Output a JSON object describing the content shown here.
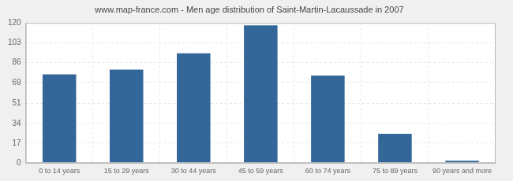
{
  "chart_data": {
    "type": "bar",
    "title": "www.map-france.com - Men age distribution of Saint-Martin-Lacaussade in 2007",
    "categories": [
      "0 to 14 years",
      "15 to 29 years",
      "30 to 44 years",
      "45 to 59 years",
      "60 to 74 years",
      "75 to 89 years",
      "90 years and more"
    ],
    "values": [
      76,
      80,
      94,
      118,
      75,
      25,
      2
    ],
    "color": "#336699",
    "ylim": [
      0,
      120
    ],
    "yticks": [
      0,
      17,
      34,
      51,
      69,
      86,
      103,
      120
    ],
    "grid": true
  }
}
